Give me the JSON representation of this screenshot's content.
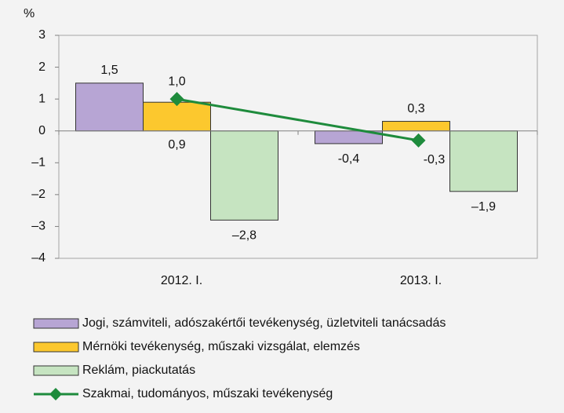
{
  "chart_data": {
    "type": "bar+line",
    "y_label": "%",
    "categories": [
      "2012. I.",
      "2013. I."
    ],
    "ylim": [
      -4,
      3
    ],
    "yticks": [
      3,
      2,
      1,
      0,
      {
        "value": -1,
        "label": "–1"
      },
      {
        "value": -2,
        "label": "–2"
      },
      {
        "value": -3,
        "label": "–3"
      },
      {
        "value": -4,
        "label": "–4"
      }
    ],
    "series": [
      {
        "name": "Jogi, számviteli, adószakértői tevékenység, üzletviteli tanácsadás",
        "type": "bar",
        "color": "#b7a5d4",
        "values": [
          1.5,
          -0.4
        ],
        "value_labels": [
          "1,5",
          "-0,4"
        ]
      },
      {
        "name": "Mérnöki tevékenység, műszaki vizsgálat, elemzés",
        "type": "bar",
        "color": "#fcc82e",
        "values": [
          0.9,
          0.3
        ],
        "value_labels": [
          "0,9",
          "0,3"
        ]
      },
      {
        "name": "Reklám, piackutatás",
        "type": "bar",
        "color": "#c6e4c1",
        "values": [
          -2.8,
          -1.9
        ],
        "value_labels": [
          "–2,8",
          "–1,9"
        ]
      },
      {
        "name": "Szakmai, tudományos, műszaki tevékenység",
        "type": "line",
        "color": "#1e8b3c",
        "values": [
          1.0,
          -0.3
        ],
        "value_labels": [
          "1,0",
          "-0,3"
        ]
      }
    ]
  }
}
